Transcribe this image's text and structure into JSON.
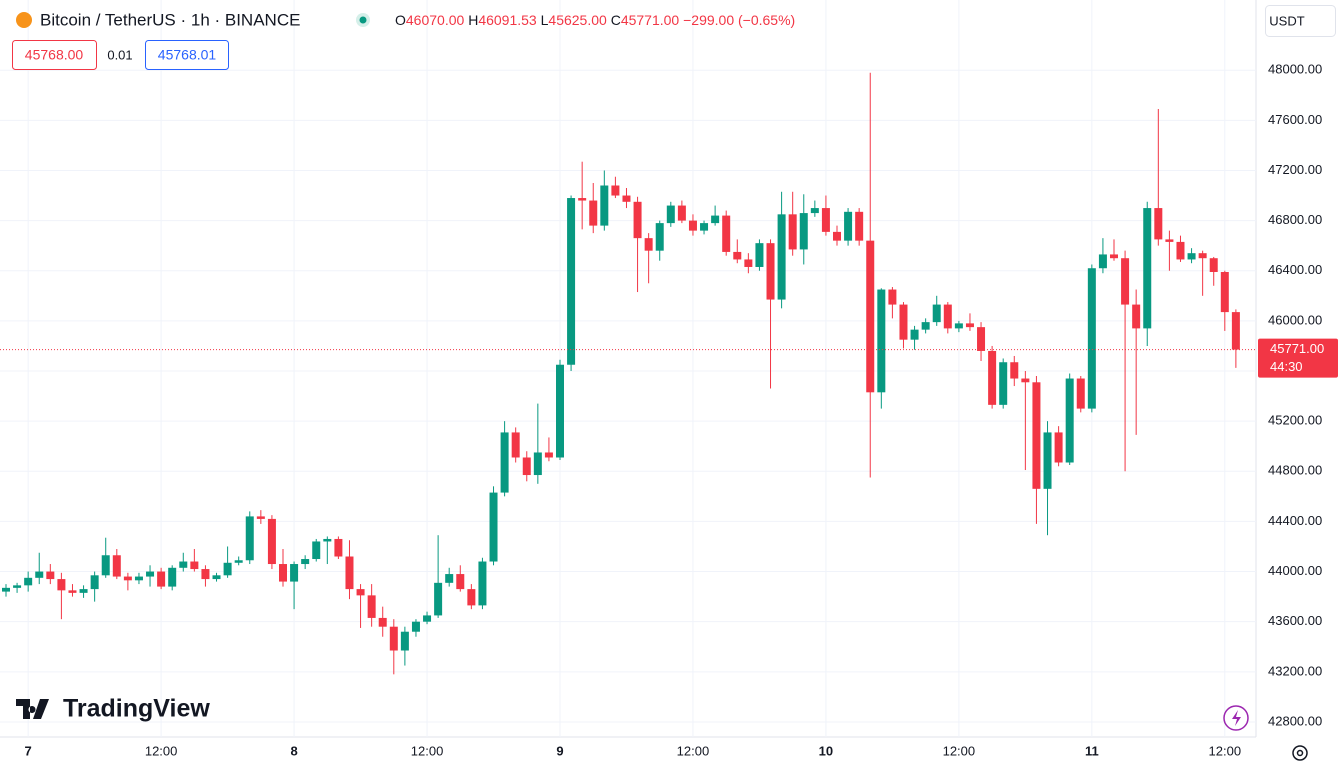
{
  "header": {
    "symbol": "Bitcoin / TetherUS · 1h · BINANCE",
    "ohlc": [
      {
        "label": "O",
        "value": "46070.00"
      },
      {
        "label": "H",
        "value": "46091.53"
      },
      {
        "label": "L",
        "value": "45625.00"
      },
      {
        "label": "C",
        "value": "45771.00"
      }
    ],
    "change": "−299.00 (−0.65%)",
    "sell": "45768.00",
    "spread": "0.01",
    "buy": "45768.01",
    "currency": "USDT"
  },
  "chart_data": {
    "type": "candlestick",
    "categories": [
      null,
      null,
      "7",
      null,
      null,
      null,
      null,
      null,
      null,
      null,
      null,
      null,
      null,
      null,
      "12:00",
      null,
      null,
      null,
      null,
      null,
      null,
      null,
      null,
      null,
      null,
      null,
      "8",
      null,
      null,
      null,
      null,
      null,
      null,
      null,
      null,
      null,
      null,
      null,
      "12:00",
      null,
      null,
      null,
      null,
      null,
      null,
      null,
      null,
      null,
      null,
      null,
      "9",
      null,
      null,
      null,
      null,
      null,
      null,
      null,
      null,
      null,
      null,
      null,
      "12:00",
      null,
      null,
      null,
      null,
      null,
      null,
      null,
      null,
      null,
      null,
      null,
      "10",
      null,
      null,
      null,
      null,
      null,
      null,
      null,
      null,
      null,
      null,
      null,
      "12:00",
      null,
      null,
      null,
      null,
      null,
      null,
      null,
      null,
      null,
      null,
      null,
      "11",
      null,
      null,
      null,
      null,
      null,
      null,
      null,
      null,
      null,
      null,
      null,
      "12:00",
      null
    ],
    "open": [
      43840,
      43870,
      43890,
      43950,
      44000,
      43940,
      43850,
      43830,
      43860,
      43970,
      44130,
      43960,
      43930,
      43960,
      44000,
      43880,
      44030,
      44080,
      44020,
      43940,
      43970,
      44070,
      44090,
      44440,
      44420,
      44060,
      43920,
      44060,
      44100,
      44240,
      44260,
      44120,
      43860,
      43810,
      43630,
      43560,
      43370,
      43520,
      43600,
      43650,
      43910,
      43980,
      43860,
      43730,
      44080,
      44630,
      45110,
      44910,
      44770,
      44950,
      44910,
      45650,
      46980,
      46960,
      46760,
      47080,
      47000,
      46950,
      46660,
      46560,
      46780,
      46920,
      46800,
      46720,
      46780,
      46840,
      46550,
      46490,
      46430,
      46620,
      46170,
      46850,
      46570,
      46860,
      46900,
      46710,
      46640,
      46870,
      46640,
      45430,
      46250,
      46130,
      45850,
      45930,
      45990,
      46130,
      45940,
      45980,
      45950,
      45760,
      45330,
      45670,
      45540,
      45510,
      44660,
      45110,
      44870,
      45540,
      45300,
      46420,
      46530,
      46500,
      46130,
      45940,
      46900,
      46650,
      46630,
      46490,
      46540,
      46500,
      46390,
      46070
    ],
    "high": [
      43900,
      43910,
      44000,
      44150,
      44060,
      43990,
      43900,
      43890,
      44000,
      44270,
      44180,
      43990,
      43990,
      44050,
      44030,
      44050,
      44150,
      44180,
      44050,
      43990,
      44200,
      44120,
      44480,
      44490,
      44450,
      44180,
      44080,
      44130,
      44260,
      44280,
      44280,
      44250,
      43900,
      43900,
      43720,
      43620,
      43560,
      43620,
      43680,
      44290,
      44030,
      44050,
      43900,
      44110,
      44680,
      45200,
      45150,
      44960,
      45340,
      45070,
      45690,
      47000,
      47270,
      47100,
      47200,
      47150,
      47060,
      46990,
      46700,
      46800,
      46950,
      46960,
      46850,
      46800,
      46920,
      46880,
      46650,
      46540,
      46650,
      46650,
      47030,
      47030,
      47010,
      46960,
      47000,
      46760,
      46900,
      46900,
      47980,
      46260,
      46270,
      46150,
      45960,
      46020,
      46200,
      46150,
      46000,
      46060,
      45990,
      45800,
      45700,
      45720,
      45600,
      45560,
      45200,
      45160,
      45580,
      45560,
      46450,
      46660,
      46650,
      46560,
      46250,
      46950,
      47690,
      46720,
      46680,
      46580,
      46560,
      46510,
      46400,
      46091.53
    ],
    "low": [
      43800,
      43830,
      43840,
      43900,
      43900,
      43620,
      43800,
      43790,
      43760,
      43950,
      43940,
      43850,
      43900,
      43880,
      43860,
      43850,
      44000,
      44000,
      43880,
      43920,
      43950,
      44050,
      44060,
      44380,
      44020,
      43880,
      43700,
      44020,
      44080,
      44060,
      44100,
      43780,
      43550,
      43560,
      43480,
      43180,
      43250,
      43480,
      43580,
      43630,
      43880,
      43840,
      43700,
      43700,
      44050,
      44600,
      44870,
      44720,
      44700,
      44880,
      44890,
      45600,
      46730,
      46700,
      46720,
      46980,
      46900,
      46230,
      46300,
      46480,
      46750,
      46780,
      46680,
      46690,
      46760,
      46520,
      46460,
      46380,
      46400,
      45460,
      46100,
      46520,
      46450,
      46830,
      46680,
      46600,
      46600,
      46600,
      44750,
      45300,
      46020,
      45780,
      45770,
      45900,
      45960,
      45900,
      45910,
      45920,
      45680,
      45300,
      45300,
      45480,
      44810,
      44380,
      44290,
      44840,
      44850,
      45270,
      45270,
      46380,
      46480,
      44800,
      45090,
      45800,
      46600,
      46400,
      46470,
      46460,
      46200,
      46280,
      45920,
      45625
    ],
    "close": [
      43870,
      43890,
      43950,
      44000,
      43940,
      43850,
      43830,
      43860,
      43970,
      44130,
      43960,
      43930,
      43960,
      44000,
      43880,
      44030,
      44080,
      44020,
      43940,
      43970,
      44070,
      44090,
      44440,
      44420,
      44060,
      43920,
      44060,
      44100,
      44240,
      44260,
      44120,
      43860,
      43810,
      43630,
      43560,
      43370,
      43520,
      43600,
      43650,
      43910,
      43980,
      43860,
      43730,
      44080,
      44630,
      45110,
      44910,
      44770,
      44950,
      44910,
      45650,
      46980,
      46960,
      46760,
      47080,
      47000,
      46950,
      46660,
      46560,
      46780,
      46920,
      46800,
      46720,
      46780,
      46840,
      46550,
      46490,
      46430,
      46620,
      46170,
      46850,
      46570,
      46860,
      46900,
      46710,
      46640,
      46870,
      46640,
      45430,
      46250,
      46130,
      45850,
      45930,
      45990,
      46130,
      45940,
      45980,
      45950,
      45760,
      45330,
      45670,
      45540,
      45510,
      44660,
      45110,
      44870,
      45540,
      45300,
      46420,
      46530,
      46500,
      46130,
      45940,
      46900,
      46650,
      46630,
      46490,
      46540,
      46500,
      46390,
      46070,
      45771
    ],
    "up_color": "#089981",
    "down_color": "#f23645",
    "ylim": [
      42680,
      48560
    ],
    "yticks": [
      {
        "value": 42800,
        "label": "42800.00"
      },
      {
        "value": 43200,
        "label": "43200.00"
      },
      {
        "value": 43600,
        "label": "43600.00"
      },
      {
        "value": 44000,
        "label": "44000.00"
      },
      {
        "value": 44400,
        "label": "44400.00"
      },
      {
        "value": 44800,
        "label": "44800.00"
      },
      {
        "value": 45200,
        "label": "45200.00"
      },
      {
        "value": 45600,
        "label": "45600.00"
      },
      {
        "value": 46000,
        "label": "46000.00"
      },
      {
        "value": 46400,
        "label": "46400.00"
      },
      {
        "value": 46800,
        "label": "46800.00"
      },
      {
        "value": 47200,
        "label": "47200.00"
      },
      {
        "value": 47600,
        "label": "47600.00"
      },
      {
        "value": 48000,
        "label": "48000.00"
      }
    ],
    "grid": true,
    "last_price_label": "45771.00",
    "countdown": "44:30"
  },
  "branding": {
    "logo": "TradingView"
  }
}
